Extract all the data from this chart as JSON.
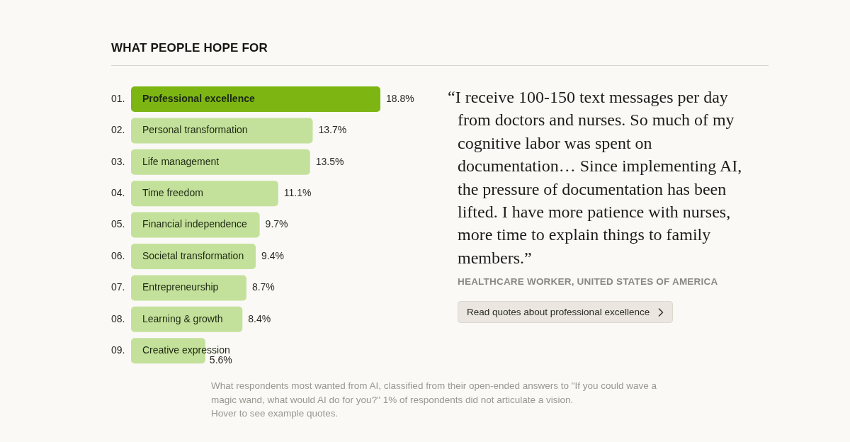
{
  "chart_data": {
    "type": "bar",
    "orientation": "horizontal",
    "title": "WHAT PEOPLE HOPE FOR",
    "categories": [
      "01. Professional excellence",
      "02. Personal transformation",
      "03. Life management",
      "04. Time freedom",
      "05. Financial independence",
      "06. Societal transformation",
      "07. Entrepreneurship",
      "08. Learning & growth",
      "09. Creative expression"
    ],
    "values": [
      18.8,
      13.7,
      13.5,
      11.1,
      9.7,
      9.4,
      8.7,
      8.4,
      5.6
    ],
    "value_labels": [
      "18.8%",
      "13.7%",
      "13.5%",
      "11.1%",
      "9.7%",
      "9.4%",
      "8.7%",
      "8.4%",
      "5.6%"
    ],
    "colors": [
      "#7db613",
      "#c4e19b",
      "#c4e19b",
      "#c4e19b",
      "#c4e19b",
      "#c4e19b",
      "#c4e19b",
      "#c4e19b",
      "#c4e19b"
    ],
    "xlim": [
      0,
      18.8
    ],
    "tick_labels": false,
    "annotations": [
      "“I receive 100-150 text messages per day from doctors and nurses. So much of my cognitive labor was spent on documentation… Since implementing AI, the pressure of documentation has been lifted. I have more patience with nurses, more time to explain things to family members.”",
      "HEALTHCARE WORKER, UNITED STATES OF AMERICA",
      "Read quotes about professional excellence",
      "What respondents most wanted from AI, classified from their open-ended answers to \"If you could wave a magic wand, what would AI do for you?\" 1% of respondents did not articulate a vision.",
      "Hover to see example quotes."
    ]
  }
}
